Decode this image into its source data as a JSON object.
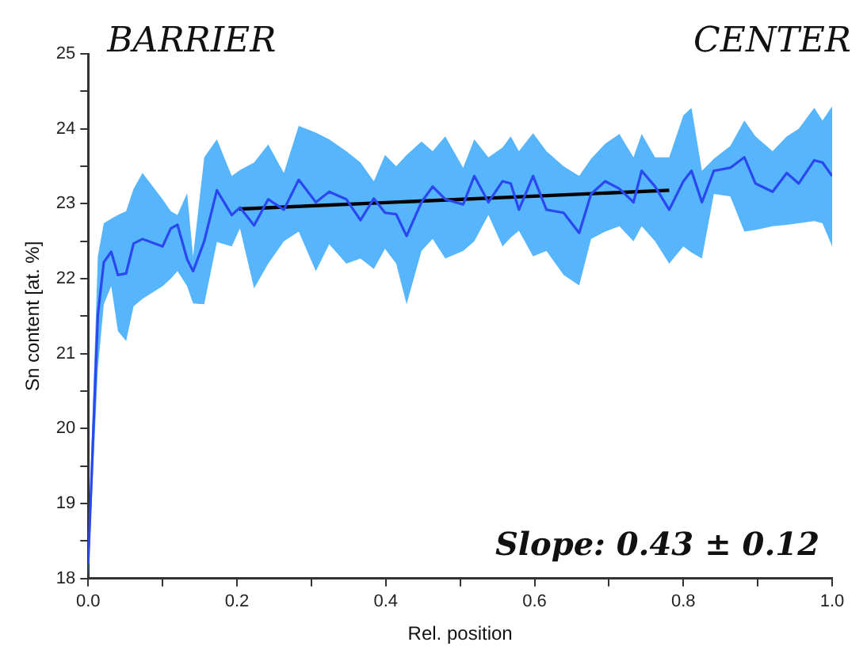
{
  "chart_data": {
    "type": "line",
    "xlabel": "Rel. position",
    "ylabel": "Sn content [at. %]",
    "xlim": [
      0,
      1
    ],
    "ylim": [
      18,
      25
    ],
    "xticks": [
      {
        "value": 0,
        "label": "0.0"
      },
      {
        "value": 0.1,
        "label": null
      },
      {
        "value": 0.2,
        "label": "0.2"
      },
      {
        "value": 0.3,
        "label": null
      },
      {
        "value": 0.4,
        "label": "0.4"
      },
      {
        "value": 0.5,
        "label": null
      },
      {
        "value": 0.6,
        "label": "0.6"
      },
      {
        "value": 0.7,
        "label": null
      },
      {
        "value": 0.8,
        "label": "0.8"
      },
      {
        "value": 0.9,
        "label": null
      },
      {
        "value": 1,
        "label": "1.0"
      }
    ],
    "yticks": [
      18,
      {
        "value": 18.5,
        "label": null
      },
      19,
      {
        "value": 19.5,
        "label": null
      },
      20,
      {
        "value": 20.5,
        "label": null
      },
      21,
      {
        "value": 21.5,
        "label": null
      },
      22,
      {
        "value": 22.5,
        "label": null
      },
      23,
      {
        "value": 23.5,
        "label": null
      },
      24,
      {
        "value": 24.5,
        "label": null
      },
      25
    ],
    "marker": "none",
    "line_style": "solid",
    "annotations": [
      "BARRIER",
      "CENTER",
      "Slope: 0.43 ± 0.12"
    ],
    "series": [
      {
        "color": "#2a48f0",
        "x": [
          0,
          0.013,
          0.021,
          0.031,
          0.04,
          0.051,
          0.061,
          0.073,
          0.1,
          0.111,
          0.12,
          0.133,
          0.141,
          0.156,
          0.173,
          0.193,
          0.204,
          0.223,
          0.242,
          0.263,
          0.283,
          0.306,
          0.324,
          0.347,
          0.366,
          0.384,
          0.399,
          0.414,
          0.428,
          0.448,
          0.463,
          0.48,
          0.504,
          0.519,
          0.538,
          0.557,
          0.568,
          0.579,
          0.598,
          0.616,
          0.639,
          0.66,
          0.676,
          0.695,
          0.714,
          0.733,
          0.744,
          0.762,
          0.781,
          0.8,
          0.811,
          0.825,
          0.841,
          0.863,
          0.882,
          0.897,
          0.92,
          0.939,
          0.955,
          0.976,
          0.987,
          1.0
        ],
        "values": [
          18.2,
          21.52,
          22.22,
          22.36,
          22.05,
          22.07,
          22.47,
          22.53,
          22.43,
          22.67,
          22.72,
          22.26,
          22.1,
          22.5,
          23.18,
          22.85,
          22.95,
          22.71,
          23.06,
          22.92,
          23.32,
          23.02,
          23.16,
          23.06,
          22.78,
          23.07,
          22.88,
          22.86,
          22.57,
          23.02,
          23.23,
          23.06,
          22.99,
          23.37,
          23.02,
          23.3,
          23.27,
          22.92,
          23.37,
          22.92,
          22.88,
          22.61,
          23.13,
          23.3,
          23.2,
          23.02,
          23.44,
          23.23,
          22.92,
          23.3,
          23.44,
          23.02,
          23.44,
          23.48,
          23.62,
          23.27,
          23.16,
          23.41,
          23.27,
          23.58,
          23.55,
          23.37
        ],
        "lower": [
          18.0,
          20.8,
          21.66,
          21.9,
          21.3,
          21.17,
          21.63,
          21.73,
          21.9,
          22.0,
          22.1,
          21.9,
          21.67,
          21.66,
          22.49,
          22.43,
          22.67,
          21.87,
          22.2,
          22.5,
          22.63,
          22.1,
          22.46,
          22.2,
          22.27,
          22.13,
          22.4,
          22.2,
          21.66,
          22.37,
          22.53,
          22.27,
          22.37,
          22.5,
          22.85,
          22.43,
          22.55,
          22.64,
          22.3,
          22.37,
          22.05,
          21.91,
          22.53,
          22.63,
          22.7,
          22.5,
          22.7,
          22.5,
          22.2,
          22.43,
          22.35,
          22.27,
          23.13,
          23.1,
          22.63,
          22.65,
          22.7,
          22.72,
          22.74,
          22.77,
          22.74,
          22.43
        ],
        "upper": [
          18.4,
          22.3,
          22.74,
          22.8,
          22.85,
          22.9,
          23.2,
          23.41,
          23.06,
          22.9,
          22.85,
          23.14,
          22.3,
          23.62,
          23.86,
          23.37,
          23.45,
          23.55,
          23.79,
          23.41,
          24.04,
          23.95,
          23.86,
          23.7,
          23.55,
          23.3,
          23.65,
          23.5,
          23.65,
          23.83,
          23.7,
          23.9,
          23.48,
          23.86,
          23.62,
          23.75,
          23.9,
          23.7,
          23.94,
          23.7,
          23.5,
          23.37,
          23.6,
          23.8,
          23.93,
          23.62,
          23.93,
          23.62,
          23.62,
          24.18,
          24.28,
          23.44,
          23.6,
          23.77,
          24.11,
          23.9,
          23.7,
          23.9,
          24.0,
          24.28,
          24.11,
          24.3
        ]
      },
      {
        "color": "#000000",
        "x": [
          0.203,
          0.781
        ],
        "values": [
          22.93,
          23.18
        ]
      }
    ]
  }
}
